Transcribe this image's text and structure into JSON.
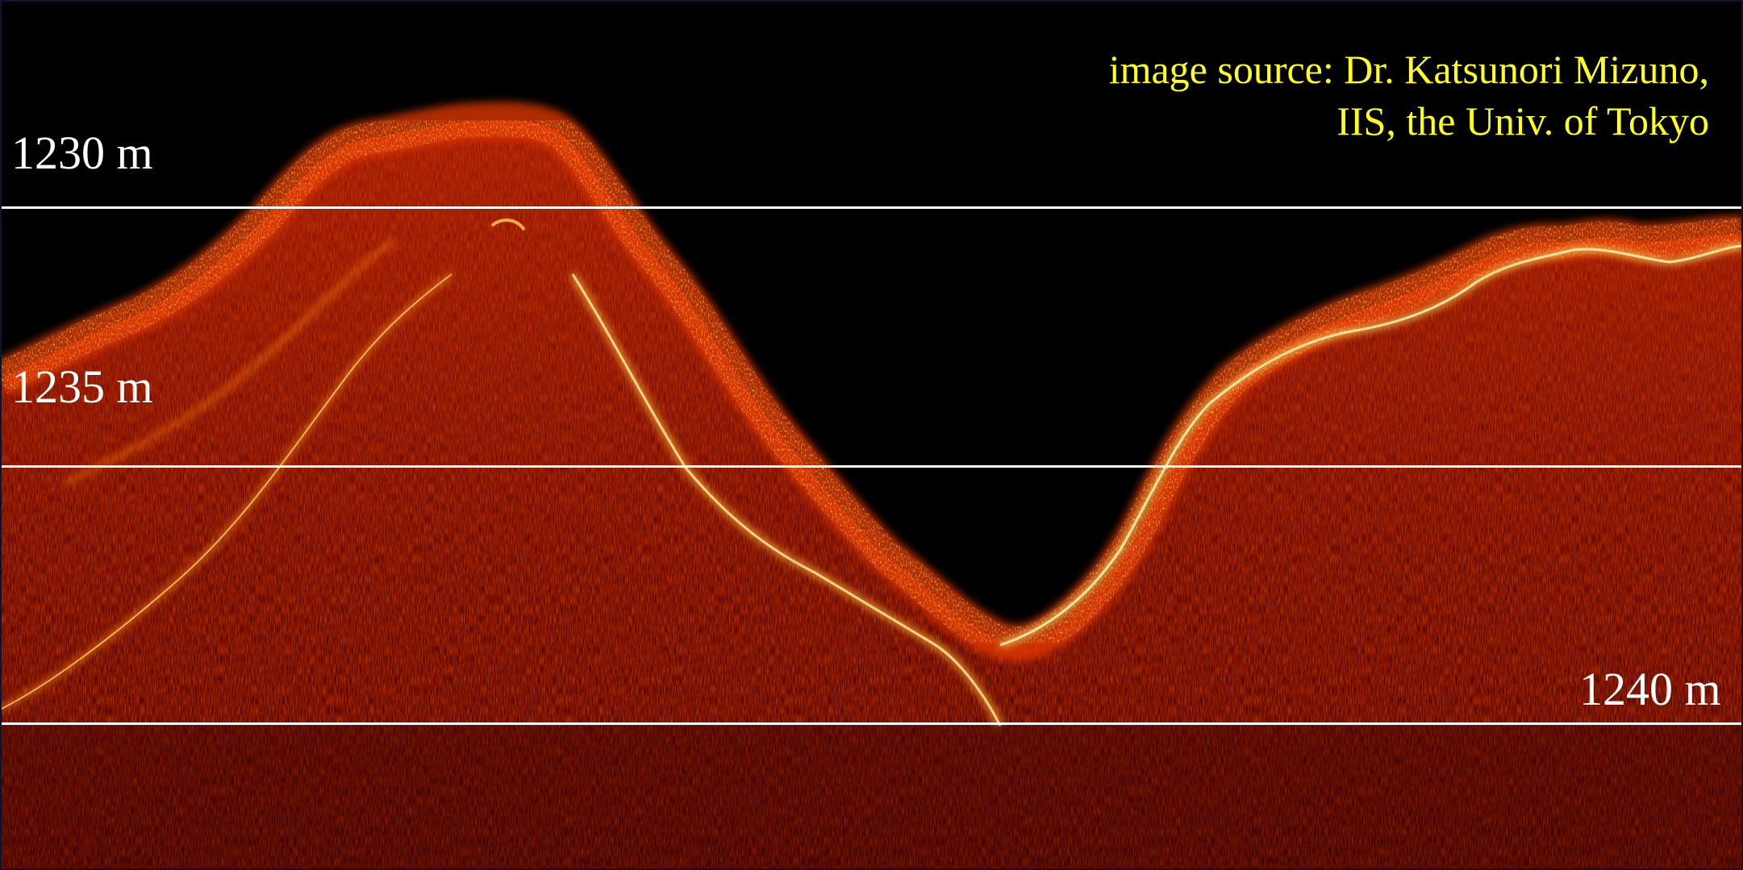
{
  "image": {
    "subject": "echogram",
    "colors": {
      "background": "#000000",
      "seafloor_dark": "#5a0000",
      "seafloor_mid": "#b01800",
      "echo_bright": "#ff7a10",
      "echo_peak": "#fff4a0",
      "depth_line": "#ffffff",
      "credit_text": "#ffff1a"
    }
  },
  "depth_markers": [
    {
      "label": "1230 m"
    },
    {
      "label": "1235 m"
    },
    {
      "label": "1240 m"
    }
  ],
  "credit": {
    "line1": "image source: Dr. Katsunori Mizuno,",
    "line2": "IIS, the Univ. of Tokyo"
  }
}
